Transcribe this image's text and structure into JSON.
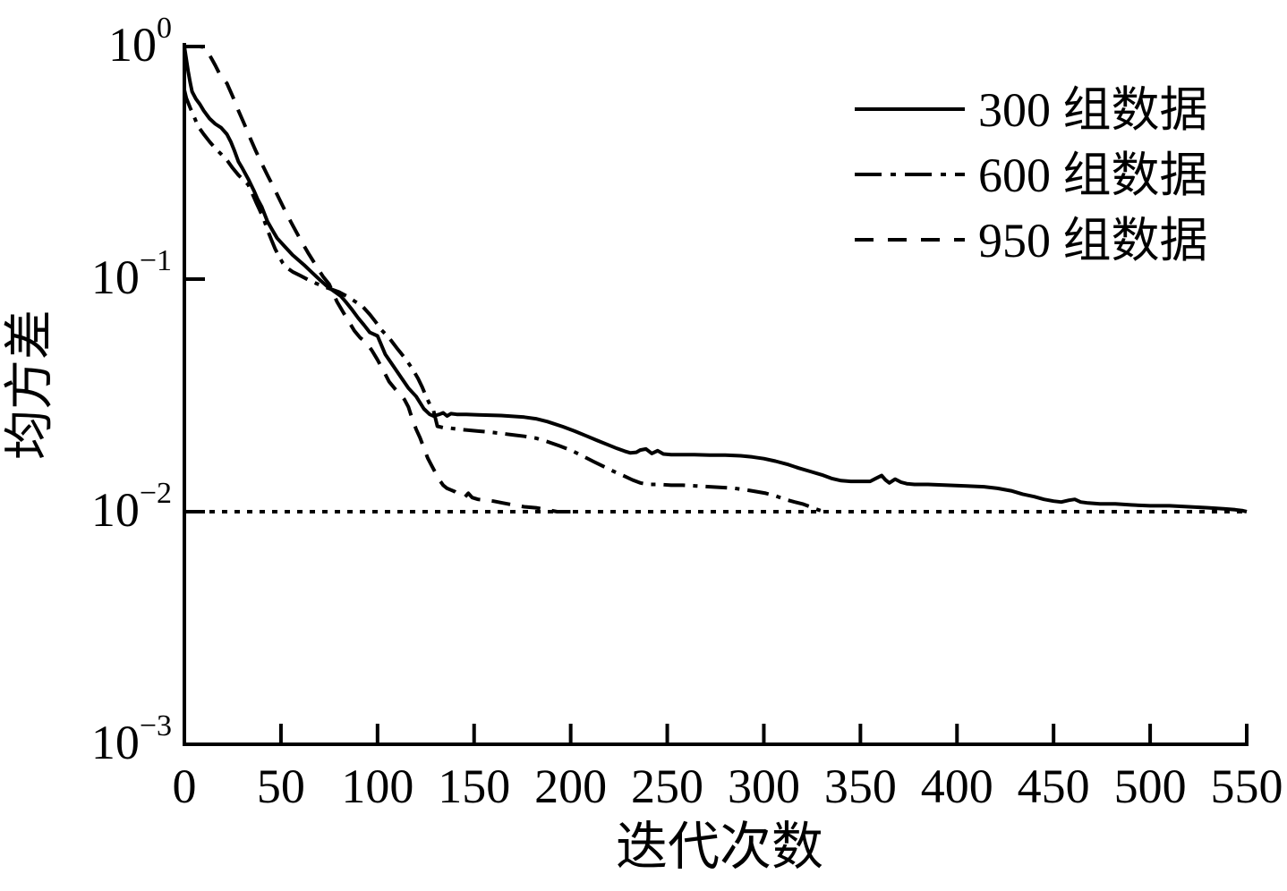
{
  "chart_data": {
    "type": "line",
    "title": "",
    "xlabel": "迭代次数",
    "ylabel": "均方差",
    "background_color": "#ffffff",
    "line_color": "#000000",
    "x_axis": {
      "min": 0,
      "max": 550,
      "tick_step": 50,
      "tick_labels": [
        "0",
        "50",
        "100",
        "150",
        "200",
        "250",
        "300",
        "350",
        "400",
        "450",
        "500",
        "550"
      ]
    },
    "y_axis": {
      "scale": "log",
      "tick_exponents": [
        0,
        -1,
        -2,
        -3
      ],
      "base_label": "10"
    },
    "legend": {
      "position": "top-right",
      "entries": [
        {
          "label": "300 组数据",
          "style": "solid"
        },
        {
          "label": "600 组数据",
          "style": "dashdot"
        },
        {
          "label": "950 组数据",
          "style": "dashed"
        }
      ]
    },
    "threshold_line": {
      "style": "dotted",
      "value": 0.01,
      "x_start": 0,
      "x_end": 550
    },
    "series": [
      {
        "name": "300 组数据",
        "style": "solid",
        "points": [
          [
            0,
            1.0
          ],
          [
            1,
            0.88
          ],
          [
            2,
            0.78
          ],
          [
            3,
            0.7
          ],
          [
            4,
            0.64
          ],
          [
            6,
            0.595
          ],
          [
            8,
            0.565
          ],
          [
            10,
            0.53
          ],
          [
            13,
            0.49
          ],
          [
            16,
            0.465
          ],
          [
            19,
            0.448
          ],
          [
            22,
            0.42
          ],
          [
            24,
            0.39
          ],
          [
            26,
            0.355
          ],
          [
            28,
            0.32
          ],
          [
            30,
            0.3
          ],
          [
            33,
            0.27
          ],
          [
            36,
            0.24
          ],
          [
            38,
            0.22
          ],
          [
            40,
            0.205
          ],
          [
            43,
            0.177
          ],
          [
            46,
            0.16
          ],
          [
            48,
            0.15
          ],
          [
            52,
            0.138
          ],
          [
            56,
            0.127
          ],
          [
            62,
            0.115
          ],
          [
            66,
            0.107
          ],
          [
            70,
            0.0995
          ],
          [
            74,
            0.093
          ],
          [
            78,
            0.088
          ],
          [
            81,
            0.0845
          ],
          [
            84,
            0.079
          ],
          [
            87,
            0.0735
          ],
          [
            90,
            0.068
          ],
          [
            93,
            0.0635
          ],
          [
            96,
            0.059
          ],
          [
            100,
            0.057
          ],
          [
            104,
            0.0475
          ],
          [
            108,
            0.0425
          ],
          [
            112,
            0.038
          ],
          [
            116,
            0.034
          ],
          [
            120,
            0.0313
          ],
          [
            124,
            0.0277
          ],
          [
            127,
            0.0262
          ],
          [
            129,
            0.0258
          ],
          [
            132,
            0.0262
          ],
          [
            134,
            0.0266
          ],
          [
            136,
            0.0258
          ],
          [
            138,
            0.0264
          ],
          [
            141,
            0.0262
          ],
          [
            146,
            0.0262
          ],
          [
            152,
            0.0261
          ],
          [
            158,
            0.026
          ],
          [
            164,
            0.0259
          ],
          [
            170,
            0.0257
          ],
          [
            176,
            0.0255
          ],
          [
            182,
            0.0251
          ],
          [
            188,
            0.0244
          ],
          [
            196,
            0.0232
          ],
          [
            202,
            0.0222
          ],
          [
            208,
            0.0212
          ],
          [
            214,
            0.0202
          ],
          [
            220,
            0.0193
          ],
          [
            224,
            0.0187
          ],
          [
            228,
            0.0182
          ],
          [
            231,
            0.0179
          ],
          [
            234,
            0.018
          ],
          [
            236,
            0.0184
          ],
          [
            239,
            0.0186
          ],
          [
            242,
            0.0178
          ],
          [
            245,
            0.0183
          ],
          [
            248,
            0.0177
          ],
          [
            252,
            0.0176
          ],
          [
            258,
            0.0176
          ],
          [
            264,
            0.0176
          ],
          [
            272,
            0.0175
          ],
          [
            280,
            0.0175
          ],
          [
            288,
            0.0174
          ],
          [
            294,
            0.0172
          ],
          [
            300,
            0.0169
          ],
          [
            306,
            0.0165
          ],
          [
            312,
            0.016
          ],
          [
            318,
            0.0154
          ],
          [
            324,
            0.0149
          ],
          [
            330,
            0.0144
          ],
          [
            335,
            0.0139
          ],
          [
            340,
            0.0136
          ],
          [
            345,
            0.0135
          ],
          [
            350,
            0.0135
          ],
          [
            355,
            0.0135
          ],
          [
            358,
            0.0139
          ],
          [
            361,
            0.0143
          ],
          [
            363,
            0.0137
          ],
          [
            365,
            0.0133
          ],
          [
            368,
            0.0138
          ],
          [
            371,
            0.0134
          ],
          [
            374,
            0.0132
          ],
          [
            378,
            0.0131
          ],
          [
            385,
            0.0131
          ],
          [
            395,
            0.013
          ],
          [
            405,
            0.0129
          ],
          [
            414,
            0.0128
          ],
          [
            421,
            0.0126
          ],
          [
            428,
            0.0123
          ],
          [
            434,
            0.0119
          ],
          [
            440,
            0.0116
          ],
          [
            445,
            0.0113
          ],
          [
            450,
            0.0111
          ],
          [
            454,
            0.011
          ],
          [
            458,
            0.0112
          ],
          [
            461,
            0.0113
          ],
          [
            464,
            0.011
          ],
          [
            468,
            0.0109
          ],
          [
            474,
            0.0108
          ],
          [
            482,
            0.0108
          ],
          [
            490,
            0.0107
          ],
          [
            500,
            0.0106
          ],
          [
            510,
            0.0106
          ],
          [
            520,
            0.0105
          ],
          [
            530,
            0.0104
          ],
          [
            538,
            0.0103
          ],
          [
            544,
            0.0102
          ],
          [
            548,
            0.0101
          ],
          [
            550,
            0.01
          ]
        ]
      },
      {
        "name": "600 组数据",
        "style": "dashdot",
        "points": [
          [
            0,
            0.65
          ],
          [
            1,
            0.6
          ],
          [
            3,
            0.545
          ],
          [
            5,
            0.5
          ],
          [
            7,
            0.455
          ],
          [
            10,
            0.42
          ],
          [
            13,
            0.39
          ],
          [
            16,
            0.365
          ],
          [
            19,
            0.345
          ],
          [
            22,
            0.325
          ],
          [
            25,
            0.3
          ],
          [
            28,
            0.28
          ],
          [
            31,
            0.265
          ],
          [
            33,
            0.255
          ],
          [
            35,
            0.235
          ],
          [
            37,
            0.215
          ],
          [
            39,
            0.198
          ],
          [
            41,
            0.182
          ],
          [
            43,
            0.163
          ],
          [
            45,
            0.148
          ],
          [
            47,
            0.135
          ],
          [
            49,
            0.125
          ],
          [
            51,
            0.117
          ],
          [
            53,
            0.112
          ],
          [
            56,
            0.1075
          ],
          [
            60,
            0.1035
          ],
          [
            64,
            0.0995
          ],
          [
            68,
            0.096
          ],
          [
            72,
            0.093
          ],
          [
            76,
            0.0905
          ],
          [
            80,
            0.088
          ],
          [
            84,
            0.0845
          ],
          [
            88,
            0.0805
          ],
          [
            92,
            0.0767
          ],
          [
            96,
            0.0705
          ],
          [
            99,
            0.0655
          ],
          [
            102,
            0.0605
          ],
          [
            105,
            0.057
          ],
          [
            107,
            0.0545
          ],
          [
            110,
            0.0505
          ],
          [
            112,
            0.0482
          ],
          [
            115,
            0.0448
          ],
          [
            118,
            0.0412
          ],
          [
            121,
            0.0374
          ],
          [
            123,
            0.0345
          ],
          [
            125,
            0.0315
          ],
          [
            127,
            0.029
          ],
          [
            129,
            0.0272
          ],
          [
            131,
            0.0233
          ],
          [
            134,
            0.023
          ],
          [
            137,
            0.0229
          ],
          [
            142,
            0.0226
          ],
          [
            147,
            0.0224
          ],
          [
            152,
            0.0222
          ],
          [
            158,
            0.022
          ],
          [
            164,
            0.0217
          ],
          [
            170,
            0.0214
          ],
          [
            176,
            0.0211
          ],
          [
            182,
            0.0207
          ],
          [
            188,
            0.02
          ],
          [
            194,
            0.0192
          ],
          [
            200,
            0.0184
          ],
          [
            206,
            0.0174
          ],
          [
            212,
            0.0164
          ],
          [
            218,
            0.0155
          ],
          [
            223,
            0.0148
          ],
          [
            228,
            0.0142
          ],
          [
            232,
            0.0137
          ],
          [
            236,
            0.0133
          ],
          [
            240,
            0.0131
          ],
          [
            246,
            0.0131
          ],
          [
            252,
            0.013
          ],
          [
            258,
            0.013
          ],
          [
            265,
            0.0129
          ],
          [
            272,
            0.0128
          ],
          [
            279,
            0.0127
          ],
          [
            285,
            0.0126
          ],
          [
            291,
            0.0124
          ],
          [
            296,
            0.0122
          ],
          [
            301,
            0.012
          ],
          [
            306,
            0.0117
          ],
          [
            311,
            0.0113
          ],
          [
            316,
            0.011
          ],
          [
            320,
            0.0108
          ],
          [
            324,
            0.0105
          ],
          [
            328,
            0.0102
          ],
          [
            331,
            0.01
          ],
          [
            333,
            0.01
          ]
        ]
      },
      {
        "name": "950 组数据",
        "style": "dashed",
        "points": [
          [
            0,
            1.0
          ],
          [
            4,
            1.0
          ],
          [
            8,
            1.0
          ],
          [
            10,
            0.995
          ],
          [
            12,
            0.95
          ],
          [
            14,
            0.89
          ],
          [
            16,
            0.83
          ],
          [
            18,
            0.77
          ],
          [
            20,
            0.725
          ],
          [
            22,
            0.695
          ],
          [
            25,
            0.61
          ],
          [
            28,
            0.53
          ],
          [
            31,
            0.465
          ],
          [
            34,
            0.405
          ],
          [
            37,
            0.355
          ],
          [
            40,
            0.315
          ],
          [
            43,
            0.28
          ],
          [
            46,
            0.25
          ],
          [
            49,
            0.222
          ],
          [
            52,
            0.198
          ],
          [
            55,
            0.177
          ],
          [
            58,
            0.159
          ],
          [
            61,
            0.1435
          ],
          [
            64,
            0.13
          ],
          [
            67,
            0.1185
          ],
          [
            70,
            0.108
          ],
          [
            72,
            0.102
          ],
          [
            75,
            0.095
          ],
          [
            79,
            0.08
          ],
          [
            82,
            0.0725
          ],
          [
            85,
            0.066
          ],
          [
            88,
            0.06
          ],
          [
            91,
            0.056
          ],
          [
            94,
            0.0535
          ],
          [
            97,
            0.0495
          ],
          [
            100,
            0.045
          ],
          [
            103,
            0.0405
          ],
          [
            106,
            0.0362
          ],
          [
            109,
            0.0338
          ],
          [
            112,
            0.0318
          ],
          [
            114,
            0.0303
          ],
          [
            116,
            0.0282
          ],
          [
            118,
            0.025
          ],
          [
            120,
            0.0226
          ],
          [
            122,
            0.0208
          ],
          [
            124,
            0.0188
          ],
          [
            126,
            0.017
          ],
          [
            128,
            0.0158
          ],
          [
            130,
            0.0147
          ],
          [
            132,
            0.0137
          ],
          [
            134,
            0.013
          ],
          [
            136,
            0.0126
          ],
          [
            138,
            0.0124
          ],
          [
            140,
            0.0122
          ],
          [
            143,
            0.0117
          ],
          [
            145,
            0.0115
          ],
          [
            147,
            0.012
          ],
          [
            149,
            0.0115
          ],
          [
            152,
            0.0113
          ],
          [
            156,
            0.0112
          ],
          [
            160,
            0.0111
          ],
          [
            165,
            0.0109
          ],
          [
            170,
            0.0107
          ],
          [
            176,
            0.0105
          ],
          [
            182,
            0.0104
          ],
          [
            188,
            0.0102
          ],
          [
            193,
            0.01
          ],
          [
            198,
            0.01
          ],
          [
            204,
            0.01
          ]
        ]
      }
    ]
  }
}
